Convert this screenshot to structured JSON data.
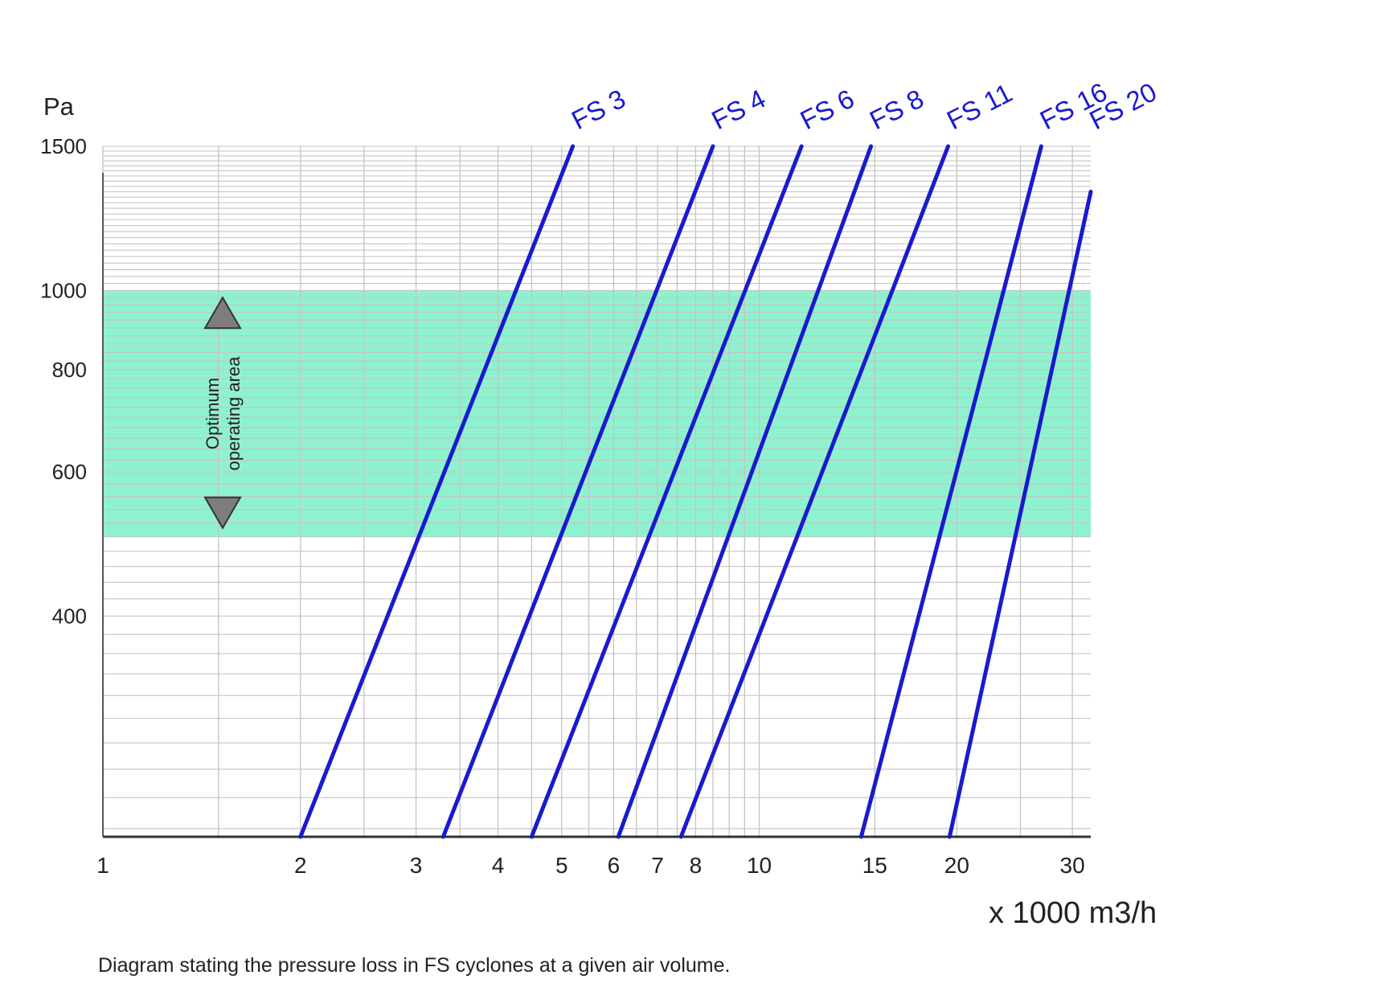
{
  "chart_data": {
    "type": "line",
    "title": "",
    "ylabel": "Pa",
    "xlabel": "x 1000  m3/h",
    "caption": "Diagram stating the pressure loss in FS cyclones at a given air volume.",
    "x_scale": "log",
    "y_scale": "log",
    "xlim": [
      1,
      32
    ],
    "ylim": [
      215,
      1500
    ],
    "x_ticks": [
      {
        "value": 1,
        "label": "1"
      },
      {
        "value": 2,
        "label": "2"
      },
      {
        "value": 3,
        "label": "3"
      },
      {
        "value": 4,
        "label": "4"
      },
      {
        "value": 5,
        "label": "5"
      },
      {
        "value": 6,
        "label": "6"
      },
      {
        "value": 7,
        "label": "7"
      },
      {
        "value": 8,
        "label": "8"
      },
      {
        "value": 10,
        "label": "10"
      },
      {
        "value": 15,
        "label": "15"
      },
      {
        "value": 20,
        "label": "20"
      },
      {
        "value": 30,
        "label": "30"
      }
    ],
    "y_ticks": [
      {
        "value": 400,
        "label": "400"
      },
      {
        "value": 600,
        "label": "600"
      },
      {
        "value": 800,
        "label": "800"
      },
      {
        "value": 1000,
        "label": "1000"
      },
      {
        "value": 1500,
        "label": "1500"
      }
    ],
    "band": {
      "y_from": 500,
      "y_to": 1000,
      "color": "#8ff2cf",
      "label_line1": "Optimum",
      "label_line2": "operating area"
    },
    "grid": true,
    "series_color": "#1a1acc",
    "series": [
      {
        "name": "FS 3",
        "points": [
          [
            2.0,
            215
          ],
          [
            5.2,
            1500
          ]
        ]
      },
      {
        "name": "FS 4",
        "points": [
          [
            3.3,
            215
          ],
          [
            8.5,
            1500
          ]
        ]
      },
      {
        "name": "FS 6",
        "points": [
          [
            4.5,
            215
          ],
          [
            11.6,
            1500
          ]
        ]
      },
      {
        "name": "FS 8",
        "points": [
          [
            6.1,
            215
          ],
          [
            14.8,
            1500
          ]
        ]
      },
      {
        "name": "FS 11",
        "points": [
          [
            7.6,
            215
          ],
          [
            19.4,
            1500
          ]
        ]
      },
      {
        "name": "FS 16",
        "points": [
          [
            14.3,
            215
          ],
          [
            26.9,
            1500
          ]
        ]
      },
      {
        "name": "FS 20",
        "points": [
          [
            19.5,
            215
          ],
          [
            32.0,
            1320
          ]
        ]
      }
    ]
  }
}
